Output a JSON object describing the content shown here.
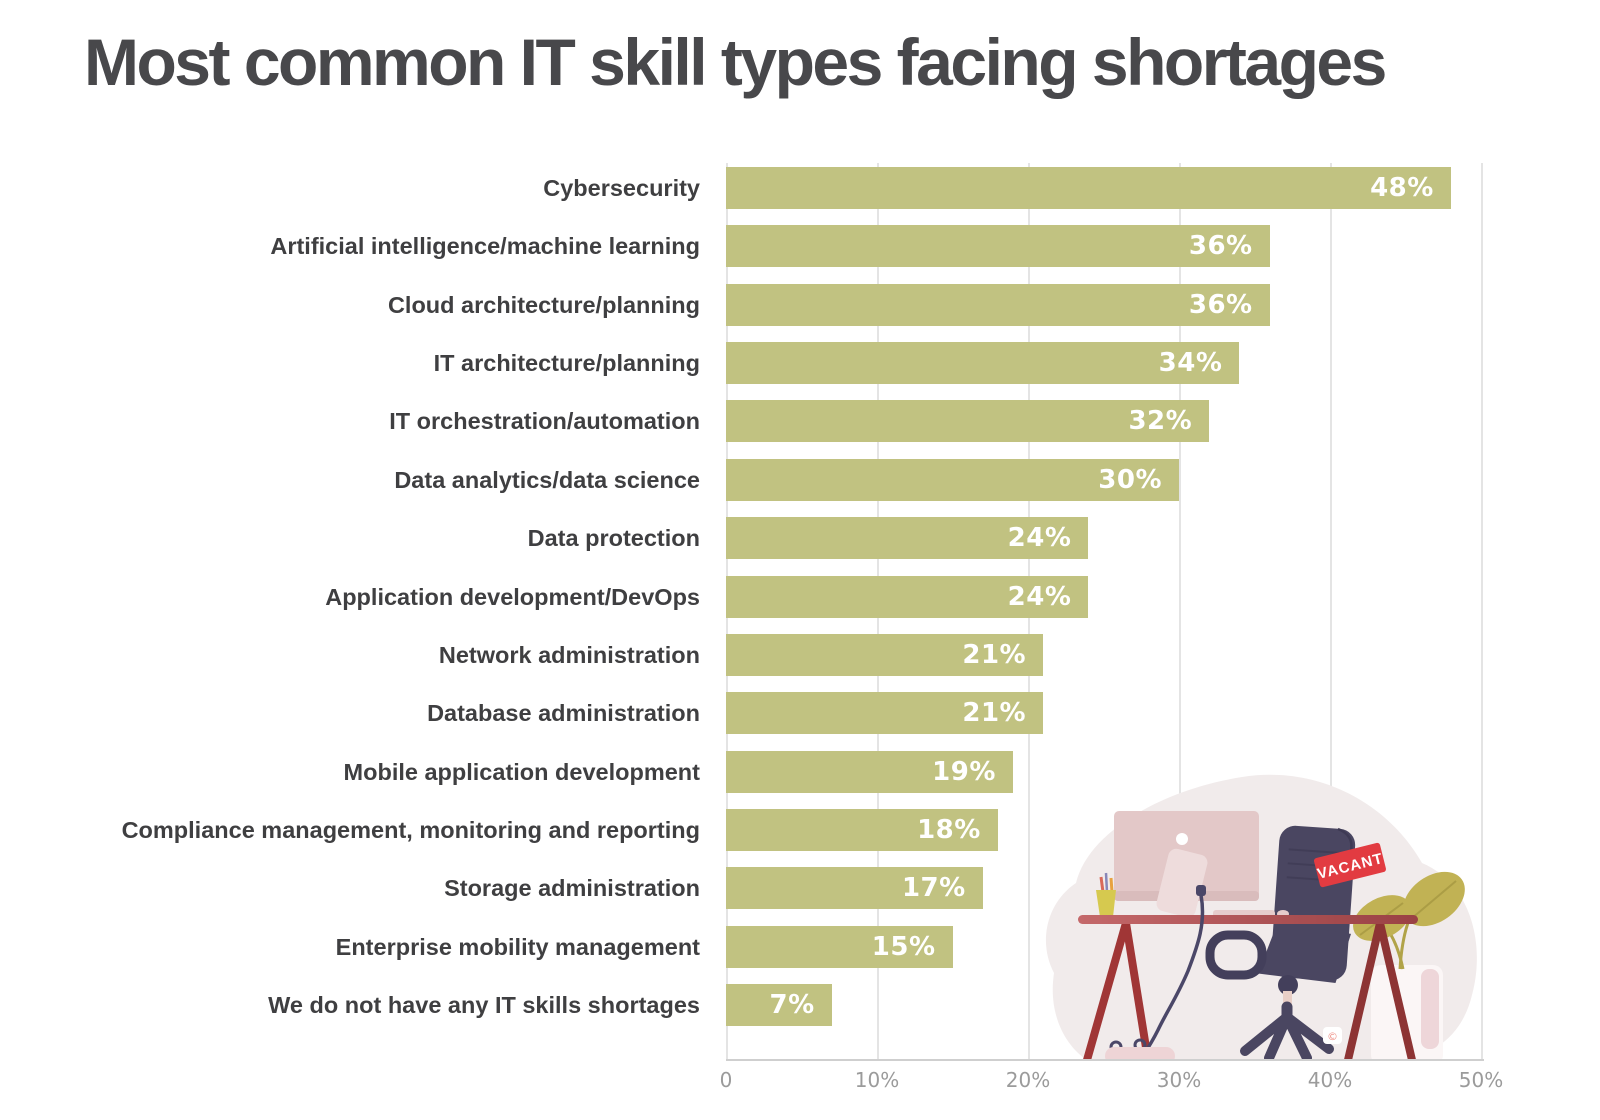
{
  "title": "Most common IT skill types facing shortages",
  "chart_data": {
    "type": "bar",
    "orientation": "horizontal",
    "title": "Most common IT skill types facing shortages",
    "categories": [
      "Cybersecurity",
      "Artificial intelligence/machine learning",
      "Cloud architecture/planning",
      "IT architecture/planning",
      "IT orchestration/automation",
      "Data analytics/data science",
      "Data protection",
      "Application development/DevOps",
      "Network administration",
      "Database administration",
      "Mobile application development",
      "Compliance management, monitoring and reporting",
      "Storage administration",
      "Enterprise mobility management",
      "We do not have any IT skills shortages"
    ],
    "values": [
      48,
      36,
      36,
      34,
      32,
      30,
      24,
      24,
      21,
      21,
      19,
      18,
      17,
      15,
      7
    ],
    "value_labels": [
      "48%",
      "36%",
      "36%",
      "34%",
      "32%",
      "30%",
      "24%",
      "24%",
      "21%",
      "21%",
      "19%",
      "18%",
      "17%",
      "15%",
      "7%"
    ],
    "xlim": [
      0,
      50
    ],
    "x_tick_labels": [
      "0",
      "10%",
      "20%",
      "30%",
      "40%",
      "50%"
    ],
    "grid": true,
    "legend": null,
    "colors": {
      "bar": "#c1c281",
      "value_label": "#ffffff",
      "category_label": "#3f3f41",
      "tick_label": "#9b9b9b",
      "gridline": "#e4e4e4",
      "axis_line": "#cfcfcf",
      "title": "#48484b"
    }
  },
  "illustration": {
    "description": "empty office desk with vacant chair",
    "vacant_tag": "VACANT",
    "colors": {
      "blob": "#f1ebeb",
      "monitor": "#e3c8c8",
      "monitor_stand": "#eedcdc",
      "desk_top": "#a84f51",
      "desk_legs_left": "#a03636",
      "desk_legs_right": "#8d3434",
      "chair": "#4a4661",
      "chair_dark": "#3e3a54",
      "pole": "#e9cfc7",
      "tag": "#e23b41",
      "plant": "#c1b254",
      "pot": "#fbf6f6",
      "pot_stripe": "#eed6d9",
      "pencil_cup": "#d6c94f",
      "cable": "#4b4768",
      "bag": "#eed4d6"
    }
  }
}
